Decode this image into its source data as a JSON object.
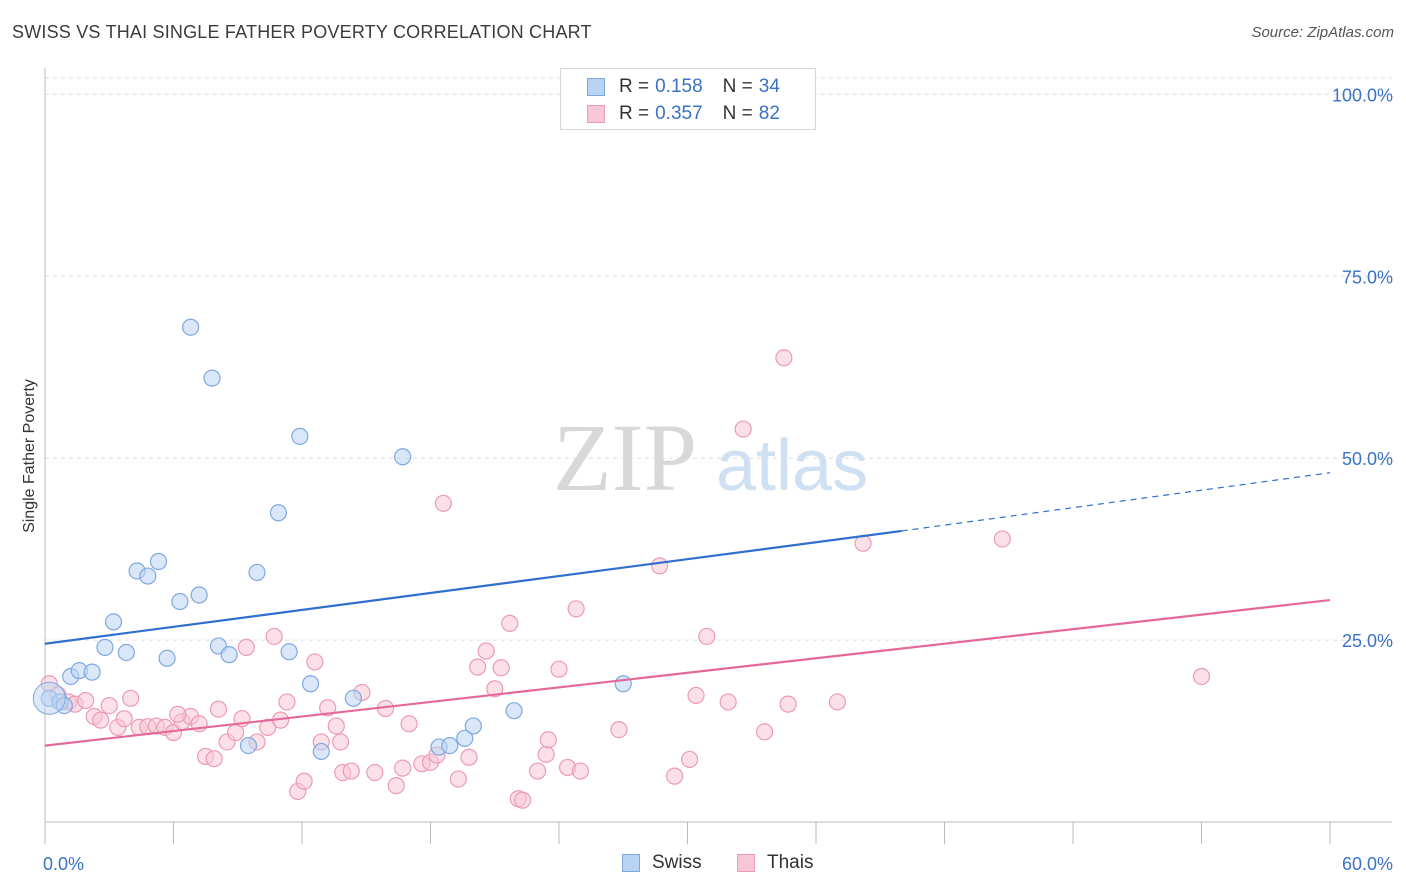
{
  "header": {
    "title": "SWISS VS THAI SINGLE FATHER POVERTY CORRELATION CHART",
    "source": "Source: ZipAtlas.com"
  },
  "watermark": {
    "zip": "ZIP",
    "atlas": "atlas"
  },
  "legend": {
    "rows": [
      {
        "r_label": "R =",
        "r_value": "0.158",
        "n_label": "N =",
        "n_value": "34"
      },
      {
        "r_label": "R =",
        "r_value": "0.357",
        "n_label": "N =",
        "n_value": "82"
      }
    ]
  },
  "bottom_legend": {
    "swiss": "Swiss",
    "thais": "Thais"
  },
  "colors": {
    "swiss_fill": "#b9d3f3",
    "swiss_stroke": "#7fa8e0",
    "swiss_line": "#2f6fd0",
    "thai_fill": "#f8c6d6",
    "thai_stroke": "#ec9ab6",
    "thai_line": "#e4699a",
    "tick_text": "#3a72c6",
    "grid": "#dddddd"
  },
  "chart_data": {
    "type": "scatter",
    "title": "SWISS VS THAI SINGLE FATHER POVERTY CORRELATION CHART",
    "xlabel": "",
    "ylabel": "Single Father Poverty",
    "xlim": [
      0,
      60
    ],
    "ylim": [
      0,
      105
    ],
    "x_tick_labels": [
      "0.0%",
      "60.0%"
    ],
    "y_ticks": [
      25,
      50,
      75,
      100
    ],
    "y_tick_labels": [
      "25.0%",
      "50.0%",
      "75.0%",
      "100.0%"
    ],
    "grid": "horizontal dashed",
    "legend_placement": "top-center",
    "series": [
      {
        "name": "Swiss",
        "r": 0.158,
        "n": 34,
        "trend": {
          "x0": 0,
          "y0": 24.5,
          "x1": 40,
          "y1": 40.0,
          "dashed_to_x": 60,
          "dashed_to_y": 48.0
        },
        "points": [
          [
            0.2,
            17.0
          ],
          [
            0.7,
            16.5
          ],
          [
            1.2,
            20.0
          ],
          [
            1.6,
            20.8
          ],
          [
            2.2,
            20.6
          ],
          [
            2.8,
            24.0
          ],
          [
            3.2,
            27.5
          ],
          [
            3.8,
            23.3
          ],
          [
            4.3,
            34.5
          ],
          [
            4.8,
            33.8
          ],
          [
            5.3,
            35.8
          ],
          [
            5.7,
            22.5
          ],
          [
            6.3,
            30.3
          ],
          [
            6.8,
            68.0
          ],
          [
            7.2,
            31.2
          ],
          [
            7.8,
            61.0
          ],
          [
            8.1,
            24.2
          ],
          [
            8.6,
            23.0
          ],
          [
            9.5,
            10.5
          ],
          [
            9.9,
            34.3
          ],
          [
            10.9,
            42.5
          ],
          [
            11.4,
            23.4
          ],
          [
            11.9,
            53.0
          ],
          [
            12.4,
            19.0
          ],
          [
            12.9,
            9.7
          ],
          [
            14.4,
            17.0
          ],
          [
            16.7,
            50.2
          ],
          [
            18.4,
            10.3
          ],
          [
            18.9,
            10.5
          ],
          [
            19.6,
            11.5
          ],
          [
            20.0,
            13.2
          ],
          [
            21.9,
            15.3
          ],
          [
            27.0,
            19.0
          ],
          [
            0.9,
            16.0
          ]
        ]
      },
      {
        "name": "Thais",
        "r": 0.357,
        "n": 82,
        "trend": {
          "x0": 0,
          "y0": 10.5,
          "x1": 60,
          "y1": 30.5
        },
        "points": [
          [
            0.2,
            19.0
          ],
          [
            0.6,
            17.5
          ],
          [
            1.1,
            16.5
          ],
          [
            1.4,
            16.2
          ],
          [
            1.9,
            16.7
          ],
          [
            2.3,
            14.5
          ],
          [
            2.6,
            14.0
          ],
          [
            3.0,
            16.0
          ],
          [
            3.4,
            13.0
          ],
          [
            3.7,
            14.2
          ],
          [
            4.0,
            17.0
          ],
          [
            4.4,
            13.0
          ],
          [
            4.8,
            13.1
          ],
          [
            5.2,
            13.2
          ],
          [
            5.6,
            13.0
          ],
          [
            6.0,
            12.3
          ],
          [
            6.4,
            13.8
          ],
          [
            6.8,
            14.5
          ],
          [
            7.2,
            13.5
          ],
          [
            7.5,
            9.0
          ],
          [
            7.9,
            8.7
          ],
          [
            8.1,
            15.5
          ],
          [
            8.5,
            11.0
          ],
          [
            8.9,
            12.3
          ],
          [
            9.2,
            14.2
          ],
          [
            9.4,
            24.0
          ],
          [
            9.9,
            11.0
          ],
          [
            10.4,
            13.0
          ],
          [
            10.7,
            25.5
          ],
          [
            11.0,
            14.0
          ],
          [
            11.3,
            16.5
          ],
          [
            11.8,
            4.2
          ],
          [
            12.1,
            5.6
          ],
          [
            12.6,
            22.0
          ],
          [
            12.9,
            11.0
          ],
          [
            13.2,
            15.7
          ],
          [
            13.6,
            13.2
          ],
          [
            13.9,
            6.8
          ],
          [
            14.3,
            7.0
          ],
          [
            14.8,
            17.8
          ],
          [
            15.4,
            6.8
          ],
          [
            15.9,
            15.6
          ],
          [
            16.4,
            5.0
          ],
          [
            16.7,
            7.4
          ],
          [
            17.0,
            13.5
          ],
          [
            17.6,
            8.0
          ],
          [
            18.0,
            8.2
          ],
          [
            18.3,
            9.2
          ],
          [
            18.6,
            43.8
          ],
          [
            19.3,
            5.9
          ],
          [
            19.8,
            8.9
          ],
          [
            20.2,
            21.3
          ],
          [
            20.6,
            23.5
          ],
          [
            21.0,
            18.3
          ],
          [
            21.3,
            21.2
          ],
          [
            21.7,
            27.3
          ],
          [
            22.1,
            3.2
          ],
          [
            22.3,
            3.0
          ],
          [
            23.0,
            7.0
          ],
          [
            23.4,
            9.3
          ],
          [
            23.5,
            11.3
          ],
          [
            24.0,
            21.0
          ],
          [
            24.4,
            7.5
          ],
          [
            24.8,
            29.3
          ],
          [
            26.8,
            12.7
          ],
          [
            28.7,
            35.2
          ],
          [
            29.4,
            6.3
          ],
          [
            30.1,
            8.6
          ],
          [
            30.4,
            17.4
          ],
          [
            30.9,
            25.5
          ],
          [
            31.9,
            16.5
          ],
          [
            32.6,
            54.0
          ],
          [
            33.6,
            12.4
          ],
          [
            34.5,
            63.8
          ],
          [
            34.7,
            16.2
          ],
          [
            37.0,
            16.5
          ],
          [
            38.2,
            38.3
          ],
          [
            44.7,
            38.9
          ],
          [
            54.0,
            20.0
          ],
          [
            25.0,
            7.0
          ],
          [
            13.8,
            11.0
          ],
          [
            6.2,
            14.8
          ]
        ]
      }
    ]
  }
}
